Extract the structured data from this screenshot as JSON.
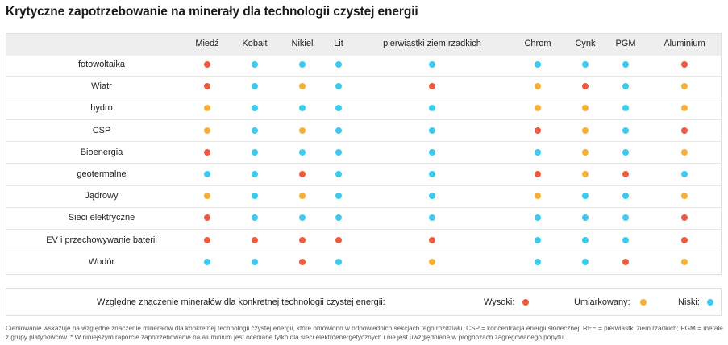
{
  "title": "Krytyczne zapotrzebowanie na minerały dla technologii czystej energii",
  "colors": {
    "wysoki": "#f05a40",
    "umiarkowany": "#f7b036",
    "niski": "#3ccbef"
  },
  "legend": {
    "caption": "Względne znaczenie minerałów dla konkretnej technologii czystej energii:",
    "high": "Wysoki:",
    "moderate": "Umiarkowany:",
    "low": "Niski:"
  },
  "footnote": "Cieniowanie wskazuje na względne znaczenie minerałów dla konkretnej technologii czystej energii, które omówiono w odpowiednich sekcjach tego rozdziału. CSP = koncentracja energii słonecznej; REE = pierwiastki ziem rzadkich; PGM = metale z grupy platynowców. * W niniejszym raporcie zapotrzebowanie na aluminium jest oceniane tylko dla sieci elektroenergetycznych i nie jest uwzględniane w prognozach zagregowanego popytu.",
  "chart_data": {
    "type": "table",
    "columns": [
      "Miedź",
      "Kobalt",
      "Nikiel",
      "Lit",
      "pierwiastki ziem rzadkich",
      "Chrom",
      "Cynk",
      "PGM",
      "Aluminium"
    ],
    "rows": [
      {
        "label": "fotowoltaika",
        "values": [
          "wysoki",
          "niski",
          "niski",
          "niski",
          "niski",
          "niski",
          "niski",
          "niski",
          "wysoki"
        ]
      },
      {
        "label": "Wiatr",
        "values": [
          "wysoki",
          "niski",
          "umiarkowany",
          "niski",
          "wysoki",
          "umiarkowany",
          "wysoki",
          "niski",
          "umiarkowany"
        ]
      },
      {
        "label": "hydro",
        "values": [
          "umiarkowany",
          "niski",
          "niski",
          "niski",
          "niski",
          "umiarkowany",
          "umiarkowany",
          "niski",
          "umiarkowany"
        ]
      },
      {
        "label": "CSP",
        "values": [
          "umiarkowany",
          "niski",
          "umiarkowany",
          "niski",
          "niski",
          "wysoki",
          "umiarkowany",
          "niski",
          "wysoki"
        ]
      },
      {
        "label": "Bioenergia",
        "values": [
          "wysoki",
          "niski",
          "niski",
          "niski",
          "niski",
          "niski",
          "umiarkowany",
          "niski",
          "umiarkowany"
        ]
      },
      {
        "label": "geotermalne",
        "values": [
          "niski",
          "niski",
          "wysoki",
          "niski",
          "niski",
          "wysoki",
          "umiarkowany",
          "wysoki",
          "niski"
        ]
      },
      {
        "label": "Jądrowy",
        "values": [
          "umiarkowany",
          "niski",
          "umiarkowany",
          "niski",
          "niski",
          "umiarkowany",
          "niski",
          "niski",
          "umiarkowany"
        ]
      },
      {
        "label": "Sieci elektryczne",
        "values": [
          "wysoki",
          "niski",
          "niski",
          "niski",
          "niski",
          "niski",
          "niski",
          "niski",
          "wysoki"
        ]
      },
      {
        "label": "EV i przechowywanie baterii",
        "values": [
          "wysoki",
          "wysoki",
          "wysoki",
          "wysoki",
          "wysoki",
          "niski",
          "niski",
          "niski",
          "wysoki"
        ]
      },
      {
        "label": "Wodór",
        "values": [
          "niski",
          "niski",
          "wysoki",
          "niski",
          "umiarkowany",
          "niski",
          "niski",
          "wysoki",
          "umiarkowany"
        ]
      }
    ]
  }
}
